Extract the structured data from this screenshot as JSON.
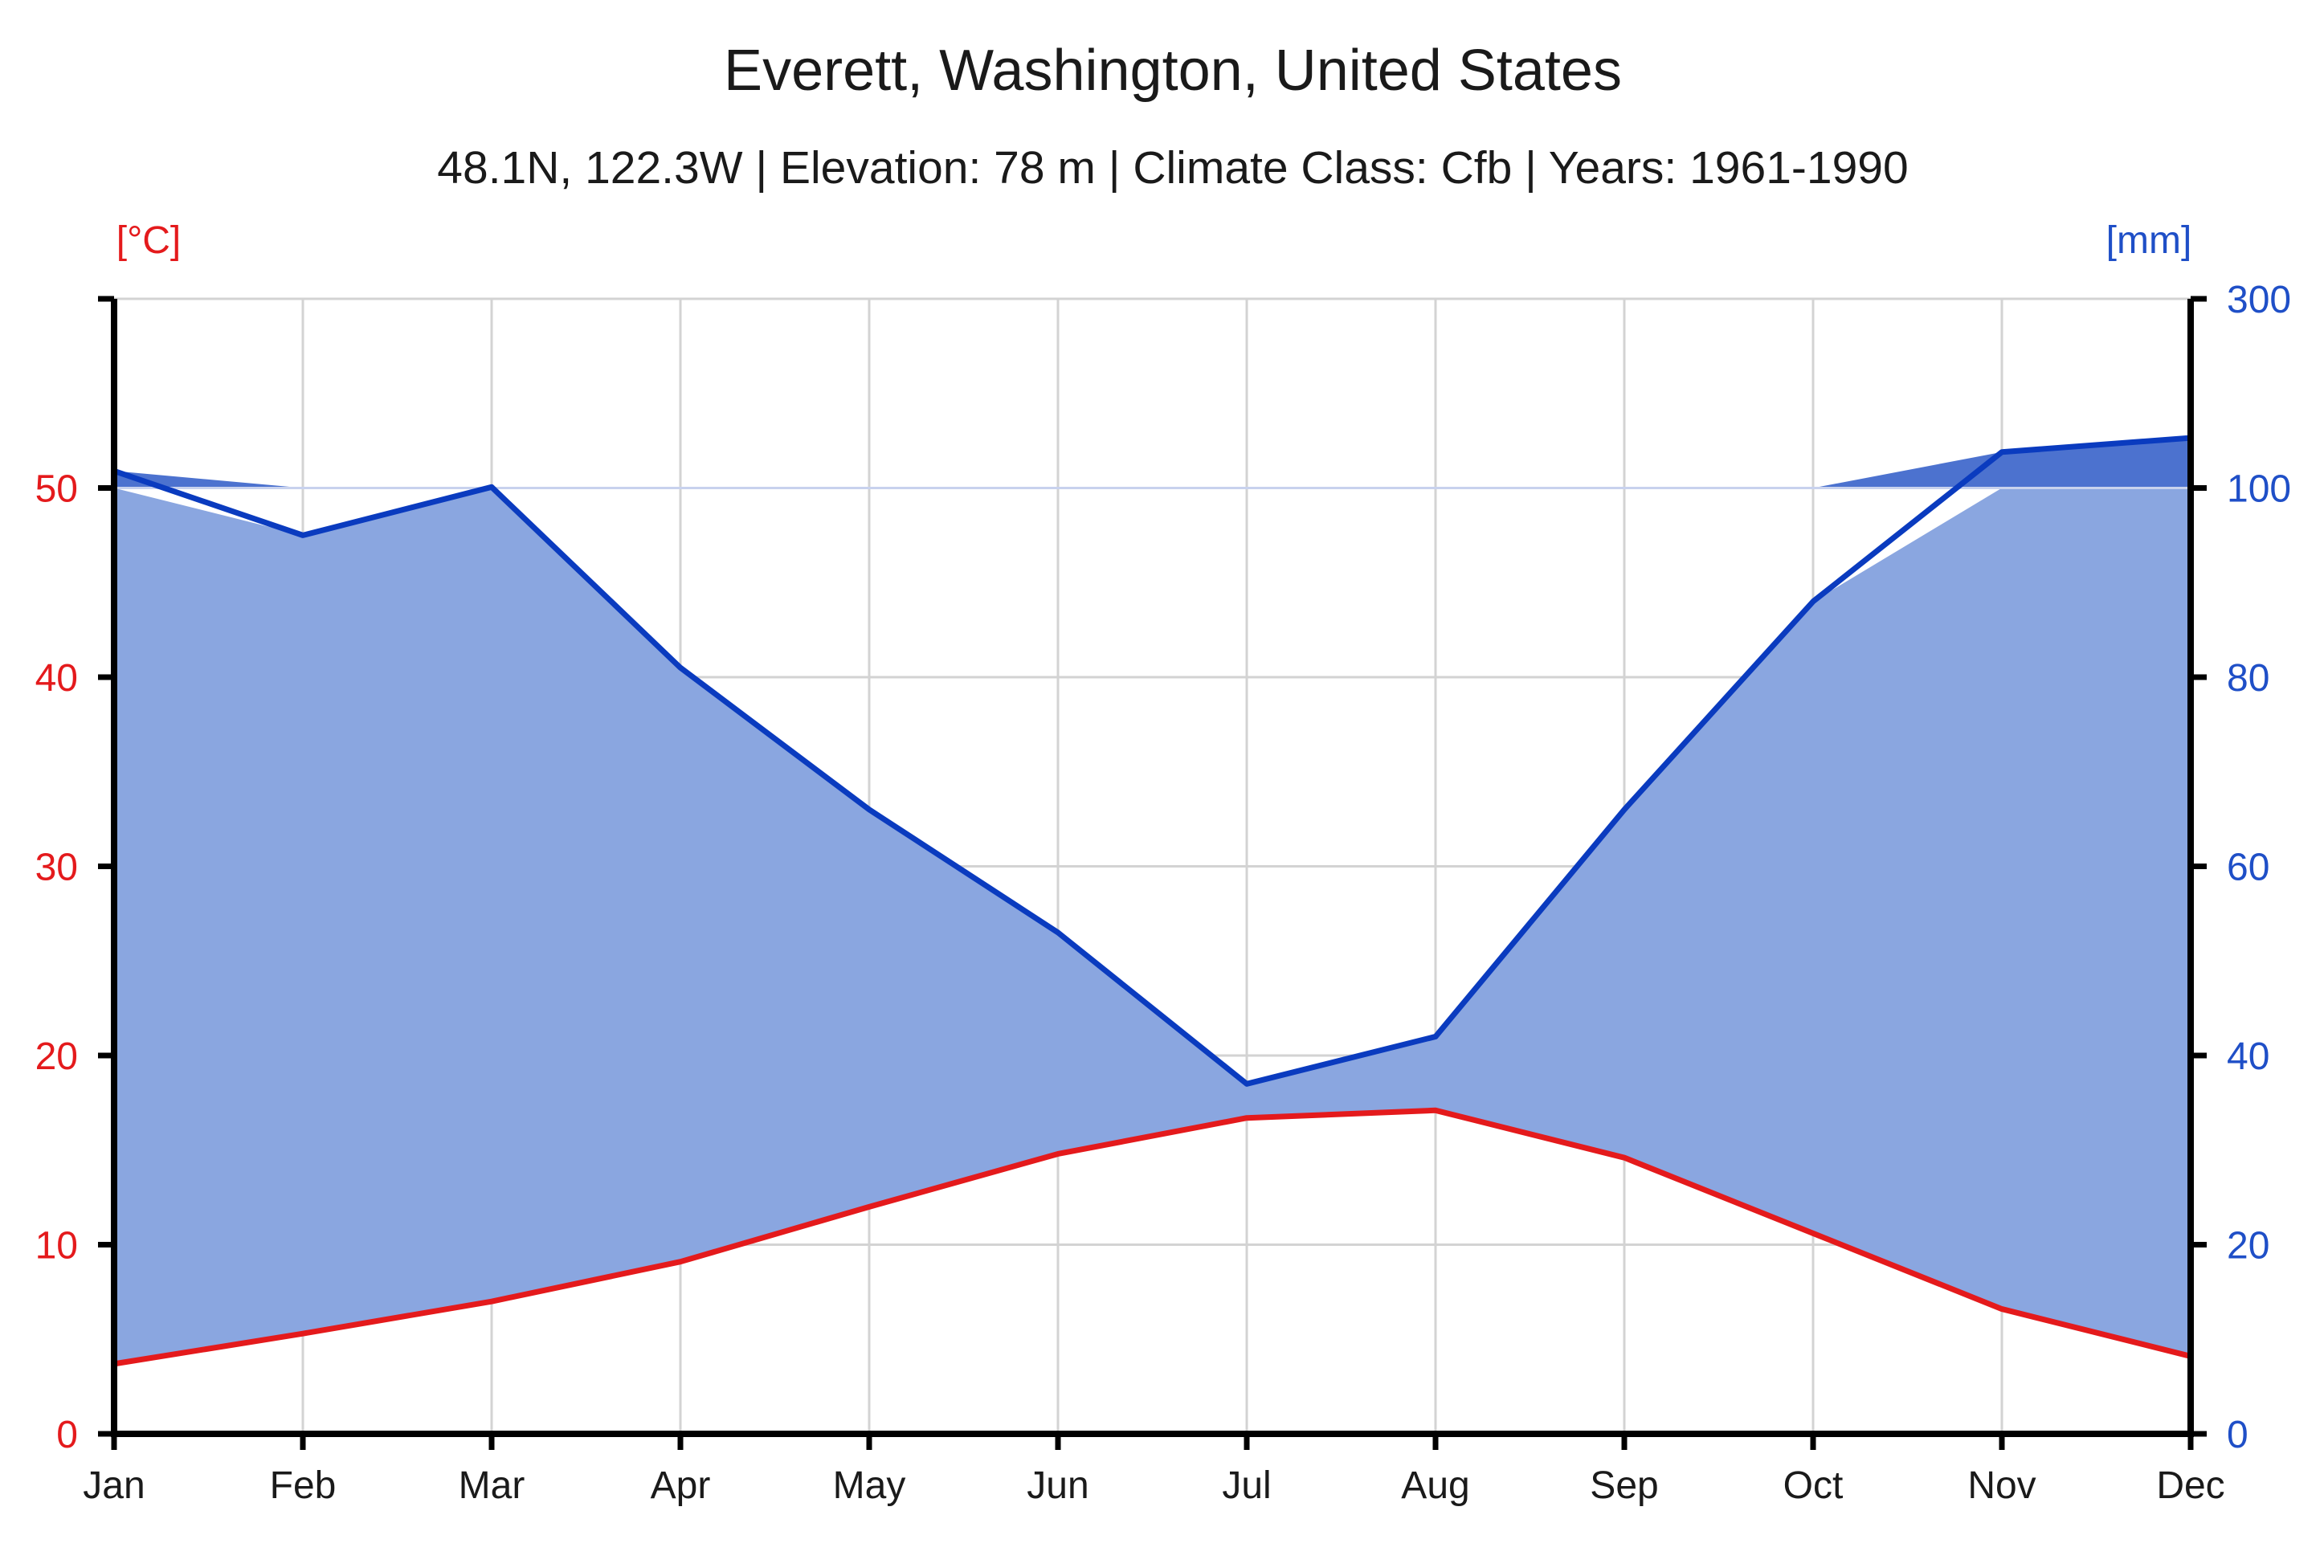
{
  "colors": {
    "temperature": "#e41a1c",
    "precipitation_line": "#0a3bbf",
    "precipitation_fill": "#8aa6e0",
    "precipitation_excess_fill": "#4c72cf",
    "right_axis_text": "#1f4fc7",
    "grid": "#d3d3d3",
    "axis": "#000000"
  },
  "chart_data": {
    "type": "area",
    "title": "Everett, Washington, United States",
    "subtitle": "48.1N, 122.3W | Elevation: 78 m | Climate Class: Cfb | Years: 1961-1990",
    "categories": [
      "Jan",
      "Feb",
      "Mar",
      "Apr",
      "May",
      "Jun",
      "Jul",
      "Aug",
      "Sep",
      "Oct",
      "Nov",
      "Dec"
    ],
    "y_left": {
      "unit_label": "[°C]",
      "range": [
        0,
        60
      ],
      "ticks": [
        "0",
        "10",
        "20",
        "30",
        "40",
        "50"
      ]
    },
    "y_right": {
      "unit_label": "[mm]",
      "range": [
        0,
        300
      ],
      "ticks": [
        "0",
        "20",
        "40",
        "60",
        "80",
        "100",
        "300"
      ]
    },
    "grid": true,
    "series": [
      {
        "axis": "left",
        "values": [
          3.7,
          5.3,
          7.0,
          9.1,
          12.0,
          14.8,
          16.7,
          17.1,
          14.6,
          10.6,
          6.6,
          4.1
        ]
      },
      {
        "axis": "right",
        "values": [
          118,
          95,
          101,
          81,
          66,
          53,
          37,
          42,
          66,
          88,
          138,
          153
        ]
      }
    ]
  }
}
